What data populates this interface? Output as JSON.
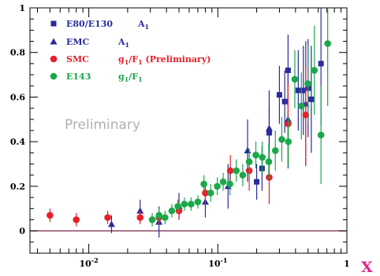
{
  "chart_data": {
    "type": "scatter",
    "title": "",
    "xlabel": "X",
    "ylabel": "",
    "xscale": "log",
    "xlim": [
      0.0035,
      1.0
    ],
    "ylim": [
      -0.1,
      1.0
    ],
    "x_ticks": [
      {
        "value": 0.01,
        "base": "10",
        "exp": "-2"
      },
      {
        "value": 0.1,
        "base": "10",
        "exp": "-1"
      },
      {
        "value": 1,
        "label": "1"
      }
    ],
    "y_ticks": [
      {
        "value": 0,
        "label": "0"
      },
      {
        "value": 0.2,
        "label": "0.2"
      },
      {
        "value": 0.4,
        "label": "0.4"
      },
      {
        "value": 0.6,
        "label": "0.6"
      },
      {
        "value": 0.8,
        "label": "0.8"
      },
      {
        "value": 1.0,
        "label": "1"
      }
    ],
    "zero_line": true,
    "grid": false,
    "legend_position": "top-left",
    "annotation": "Preliminary",
    "legend": [
      {
        "name": "E80/E130",
        "sub": "",
        "quantity": "A",
        "qsub": "1",
        "tail": "",
        "color": "#2a2a9c",
        "marker": "square"
      },
      {
        "name": "EMC",
        "sub": "",
        "quantity": "A",
        "qsub": "1",
        "tail": "",
        "color": "#2a2a9c",
        "marker": "triangle"
      },
      {
        "name": "SMC",
        "sub": "",
        "quantity": "g",
        "qsub": "1",
        "tail": "/F",
        "tsub": "1",
        "extra": " (Preliminary)",
        "color": "#e8202a",
        "marker": "circle"
      },
      {
        "name": "E143",
        "sub": "",
        "quantity": "g",
        "qsub": "1",
        "tail": "/F",
        "tsub": "1",
        "extra": "",
        "color": "#1aa84a",
        "marker": "circle"
      }
    ],
    "series": [
      {
        "name": "E80/E130",
        "color": "#2a2a9c",
        "marker": "square",
        "points": [
          {
            "x": 0.2,
            "y": 0.22,
            "err": 0.08
          },
          {
            "x": 0.22,
            "y": 0.28,
            "err": 0.1
          },
          {
            "x": 0.25,
            "y": 0.44,
            "err": 0.12
          },
          {
            "x": 0.3,
            "y": 0.61,
            "err": 0.13
          },
          {
            "x": 0.33,
            "y": 0.58,
            "err": 0.14
          },
          {
            "x": 0.35,
            "y": 0.72,
            "err": 0.16
          },
          {
            "x": 0.42,
            "y": 0.63,
            "err": 0.18
          },
          {
            "x": 0.46,
            "y": 0.63,
            "err": 0.2
          },
          {
            "x": 0.5,
            "y": 0.64,
            "err": 0.22
          },
          {
            "x": 0.53,
            "y": 0.59,
            "err": 0.24
          },
          {
            "x": 0.63,
            "y": 0.75,
            "err": 0.28
          }
        ]
      },
      {
        "name": "EMC",
        "color": "#2a2a9c",
        "marker": "triangle",
        "points": [
          {
            "x": 0.015,
            "y": 0.03,
            "err": 0.04
          },
          {
            "x": 0.025,
            "y": 0.09,
            "err": 0.05
          },
          {
            "x": 0.035,
            "y": 0.04,
            "err": 0.07
          },
          {
            "x": 0.05,
            "y": 0.11,
            "err": 0.06
          },
          {
            "x": 0.08,
            "y": 0.13,
            "err": 0.07
          },
          {
            "x": 0.12,
            "y": 0.2,
            "err": 0.1
          },
          {
            "x": 0.17,
            "y": 0.36,
            "err": 0.14
          },
          {
            "x": 0.25,
            "y": 0.46,
            "err": 0.17
          },
          {
            "x": 0.35,
            "y": 0.5,
            "err": 0.22
          },
          {
            "x": 0.48,
            "y": 0.57,
            "err": 0.28
          }
        ]
      },
      {
        "name": "SMC",
        "color": "#e8202a",
        "marker": "circle",
        "points": [
          {
            "x": 0.005,
            "y": 0.07,
            "err": 0.03
          },
          {
            "x": 0.008,
            "y": 0.05,
            "err": 0.03
          },
          {
            "x": 0.014,
            "y": 0.06,
            "err": 0.03
          },
          {
            "x": 0.025,
            "y": 0.06,
            "err": 0.03
          },
          {
            "x": 0.035,
            "y": 0.06,
            "err": 0.03
          },
          {
            "x": 0.05,
            "y": 0.09,
            "err": 0.04
          },
          {
            "x": 0.08,
            "y": 0.17,
            "err": 0.05
          },
          {
            "x": 0.125,
            "y": 0.27,
            "err": 0.07
          },
          {
            "x": 0.175,
            "y": 0.27,
            "err": 0.09
          },
          {
            "x": 0.25,
            "y": 0.24,
            "err": 0.12
          },
          {
            "x": 0.35,
            "y": 0.48,
            "err": 0.18
          },
          {
            "x": 0.48,
            "y": 0.52,
            "err": 0.22
          }
        ]
      },
      {
        "name": "E143",
        "color": "#1aa84a",
        "marker": "circle",
        "points": [
          {
            "x": 0.031,
            "y": 0.05,
            "err": 0.03
          },
          {
            "x": 0.035,
            "y": 0.07,
            "err": 0.03
          },
          {
            "x": 0.039,
            "y": 0.06,
            "err": 0.03
          },
          {
            "x": 0.044,
            "y": 0.09,
            "err": 0.03
          },
          {
            "x": 0.049,
            "y": 0.11,
            "err": 0.03
          },
          {
            "x": 0.055,
            "y": 0.12,
            "err": 0.03
          },
          {
            "x": 0.062,
            "y": 0.12,
            "err": 0.03
          },
          {
            "x": 0.07,
            "y": 0.13,
            "err": 0.03
          },
          {
            "x": 0.078,
            "y": 0.21,
            "err": 0.04
          },
          {
            "x": 0.088,
            "y": 0.17,
            "err": 0.04
          },
          {
            "x": 0.099,
            "y": 0.2,
            "err": 0.04
          },
          {
            "x": 0.11,
            "y": 0.22,
            "err": 0.04
          },
          {
            "x": 0.124,
            "y": 0.21,
            "err": 0.05
          },
          {
            "x": 0.139,
            "y": 0.27,
            "err": 0.05
          },
          {
            "x": 0.156,
            "y": 0.25,
            "err": 0.05
          },
          {
            "x": 0.175,
            "y": 0.31,
            "err": 0.06
          },
          {
            "x": 0.197,
            "y": 0.34,
            "err": 0.06
          },
          {
            "x": 0.221,
            "y": 0.33,
            "err": 0.07
          },
          {
            "x": 0.248,
            "y": 0.31,
            "err": 0.08
          },
          {
            "x": 0.279,
            "y": 0.36,
            "err": 0.09
          },
          {
            "x": 0.313,
            "y": 0.41,
            "err": 0.1
          },
          {
            "x": 0.352,
            "y": 0.4,
            "err": 0.11
          },
          {
            "x": 0.395,
            "y": 0.68,
            "err": 0.13
          },
          {
            "x": 0.444,
            "y": 0.56,
            "err": 0.15
          },
          {
            "x": 0.499,
            "y": 0.66,
            "err": 0.17
          },
          {
            "x": 0.56,
            "y": 0.72,
            "err": 0.2
          },
          {
            "x": 0.63,
            "y": 0.43,
            "err": 0.22
          },
          {
            "x": 0.71,
            "y": 0.84,
            "err": 0.28
          }
        ]
      }
    ]
  }
}
